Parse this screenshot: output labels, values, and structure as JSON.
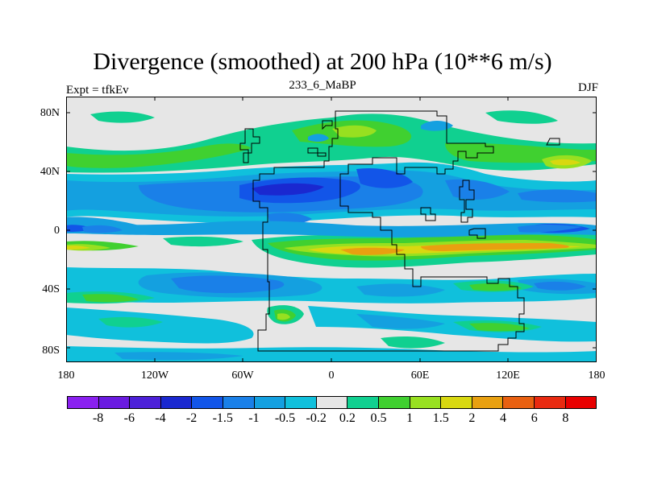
{
  "title": "Divergence (smoothed) at 200 hPa (10**6 m/s)",
  "left_label": "Expt = tfkEv",
  "center_label": "233_6_MaBP",
  "right_label": "DJF",
  "chart_data": {
    "type": "heatmap",
    "description_units": "10**6 m/s",
    "projection": "cylindrical equidistant",
    "lon_range": [
      -180,
      180
    ],
    "lat_range": [
      -90,
      90
    ],
    "x_ticks": [
      "180",
      "120W",
      "60W",
      "0",
      "60E",
      "120E",
      "180"
    ],
    "y_ticks": [
      "80N",
      "40N",
      "0",
      "40S",
      "80S"
    ],
    "colorbar": {
      "levels": [
        "-8",
        "-6",
        "-4",
        "-2",
        "-1.5",
        "-1",
        "-0.5",
        "-0.2",
        "0.2",
        "0.5",
        "1",
        "1.5",
        "2",
        "4",
        "6",
        "8"
      ],
      "colors": [
        "#8a20f0",
        "#6a1be0",
        "#4c20d8",
        "#1a28d0",
        "#1255e8",
        "#1a80e8",
        "#14a0e0",
        "#10c0dc",
        "#e6e6e6",
        "#10d090",
        "#40d030",
        "#98e020",
        "#d8d810",
        "#e8a010",
        "#e86010",
        "#e82a10",
        "#e80000"
      ]
    }
  }
}
